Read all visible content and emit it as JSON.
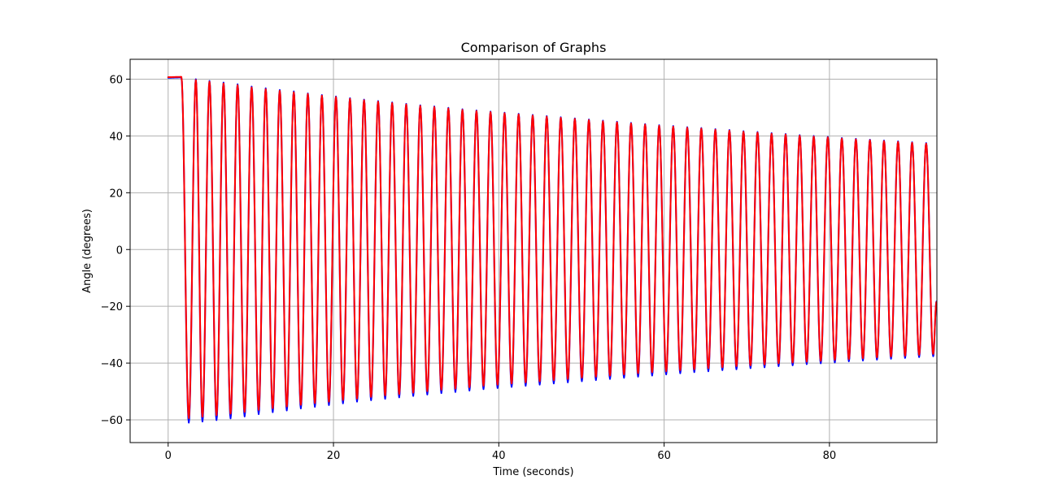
{
  "chart_data": {
    "type": "line",
    "title": "Comparison of Graphs",
    "xlabel": "Time (seconds)",
    "ylabel": "Angle (degrees)",
    "xlim": [
      -4.6,
      93.0
    ],
    "ylim": [
      -68,
      67
    ],
    "xticks": [
      0,
      20,
      40,
      60,
      80
    ],
    "yticks": [
      -60,
      -40,
      -20,
      0,
      20,
      40,
      60
    ],
    "xtick_labels": [
      "0",
      "20",
      "40",
      "60",
      "80"
    ],
    "ytick_labels": [
      "−60",
      "−40",
      "−20",
      "0",
      "20",
      "40",
      "60"
    ],
    "grid": true,
    "legend": "none",
    "series": [
      {
        "color": "#0000ff",
        "points": [
          [
            0.0,
            60.5
          ],
          [
            1.6,
            60.6
          ],
          [
            2.5,
            -61.0
          ],
          [
            3.35,
            60.0
          ],
          [
            4.15,
            -60.6
          ],
          [
            5.0,
            59.4
          ],
          [
            5.85,
            -60.1
          ],
          [
            6.7,
            58.8
          ],
          [
            7.55,
            -59.5
          ],
          [
            8.4,
            58.2
          ],
          [
            9.25,
            -58.8
          ],
          [
            10.1,
            57.4
          ],
          [
            10.95,
            -58.0
          ],
          [
            11.8,
            56.8
          ],
          [
            12.65,
            -57.3
          ],
          [
            13.5,
            56.2
          ],
          [
            14.35,
            -56.7
          ],
          [
            15.2,
            55.7
          ],
          [
            16.05,
            -56.0
          ],
          [
            16.9,
            55.0
          ],
          [
            17.75,
            -55.4
          ],
          [
            18.6,
            54.4
          ],
          [
            19.45,
            -54.8
          ],
          [
            20.3,
            53.9
          ],
          [
            21.15,
            -54.2
          ],
          [
            22.0,
            53.3
          ],
          [
            22.85,
            -53.6
          ],
          [
            23.7,
            52.8
          ],
          [
            24.55,
            -53.1
          ],
          [
            25.4,
            52.3
          ],
          [
            26.25,
            -52.6
          ],
          [
            27.1,
            51.8
          ],
          [
            27.95,
            -52.1
          ],
          [
            28.8,
            51.3
          ],
          [
            29.65,
            -51.6
          ],
          [
            30.5,
            50.8
          ],
          [
            31.35,
            -51.1
          ],
          [
            32.2,
            50.4
          ],
          [
            33.05,
            -50.6
          ],
          [
            33.9,
            49.9
          ],
          [
            34.75,
            -50.2
          ],
          [
            35.6,
            49.4
          ],
          [
            36.45,
            -49.7
          ],
          [
            37.3,
            49.0
          ],
          [
            38.15,
            -49.2
          ],
          [
            39.0,
            48.6
          ],
          [
            39.85,
            -48.8
          ],
          [
            40.7,
            48.2
          ],
          [
            41.55,
            -48.4
          ],
          [
            42.4,
            47.8
          ],
          [
            43.25,
            -48.0
          ],
          [
            44.1,
            47.4
          ],
          [
            44.95,
            -47.6
          ],
          [
            45.8,
            47.0
          ],
          [
            46.65,
            -47.2
          ],
          [
            47.5,
            46.6
          ],
          [
            48.35,
            -46.8
          ],
          [
            49.2,
            46.2
          ],
          [
            50.05,
            -46.4
          ],
          [
            50.9,
            45.8
          ],
          [
            51.75,
            -46.0
          ],
          [
            52.6,
            45.4
          ],
          [
            53.45,
            -45.6
          ],
          [
            54.3,
            45.0
          ],
          [
            55.15,
            -45.2
          ],
          [
            56.0,
            44.6
          ],
          [
            56.85,
            -44.8
          ],
          [
            57.7,
            44.2
          ],
          [
            58.55,
            -44.4
          ],
          [
            59.4,
            43.8
          ],
          [
            60.25,
            -44.0
          ],
          [
            61.1,
            43.5
          ],
          [
            61.95,
            -43.6
          ],
          [
            62.8,
            43.1
          ],
          [
            63.65,
            -43.2
          ],
          [
            64.5,
            42.8
          ],
          [
            65.35,
            -42.9
          ],
          [
            66.2,
            42.4
          ],
          [
            67.05,
            -42.5
          ],
          [
            67.9,
            42.1
          ],
          [
            68.75,
            -42.2
          ],
          [
            69.6,
            41.7
          ],
          [
            70.45,
            -41.8
          ],
          [
            71.3,
            41.4
          ],
          [
            72.15,
            -41.5
          ],
          [
            73.0,
            41.0
          ],
          [
            73.85,
            -41.1
          ],
          [
            74.7,
            40.7
          ],
          [
            75.55,
            -40.8
          ],
          [
            76.4,
            40.3
          ],
          [
            77.25,
            -40.4
          ],
          [
            78.1,
            40.0
          ],
          [
            78.95,
            -40.1
          ],
          [
            79.8,
            39.7
          ],
          [
            80.65,
            -39.8
          ],
          [
            81.5,
            39.3
          ],
          [
            82.35,
            -39.4
          ],
          [
            83.2,
            39.0
          ],
          [
            84.05,
            -39.1
          ],
          [
            84.9,
            38.7
          ],
          [
            85.75,
            -38.8
          ],
          [
            86.6,
            38.4
          ],
          [
            87.45,
            -38.5
          ],
          [
            88.3,
            38.1
          ],
          [
            89.15,
            -38.2
          ],
          [
            90.0,
            37.8
          ],
          [
            90.85,
            -37.9
          ],
          [
            91.7,
            37.5
          ],
          [
            92.55,
            -37.6
          ],
          [
            92.95,
            -18.3
          ]
        ]
      },
      {
        "color": "#ff0000",
        "points": [
          [
            0.0,
            60.7
          ],
          [
            1.6,
            60.8
          ],
          [
            2.5,
            -59.4
          ],
          [
            3.35,
            59.7
          ],
          [
            4.15,
            -58.9
          ],
          [
            5.0,
            59.1
          ],
          [
            5.85,
            -58.4
          ],
          [
            6.7,
            58.5
          ],
          [
            7.55,
            -57.8
          ],
          [
            8.4,
            57.9
          ],
          [
            9.25,
            -57.2
          ],
          [
            10.1,
            57.1
          ],
          [
            10.95,
            -56.5
          ],
          [
            11.8,
            56.5
          ],
          [
            12.65,
            -55.9
          ],
          [
            13.5,
            55.9
          ],
          [
            14.35,
            -55.3
          ],
          [
            15.2,
            55.4
          ],
          [
            16.05,
            -54.7
          ],
          [
            16.9,
            54.8
          ],
          [
            17.75,
            -54.1
          ],
          [
            18.6,
            54.2
          ],
          [
            19.45,
            -53.6
          ],
          [
            20.3,
            53.7
          ],
          [
            21.15,
            -53.0
          ],
          [
            22.0,
            53.1
          ],
          [
            22.85,
            -52.5
          ],
          [
            23.7,
            52.6
          ],
          [
            24.55,
            -51.9
          ],
          [
            25.4,
            52.1
          ],
          [
            26.25,
            -51.4
          ],
          [
            27.1,
            51.6
          ],
          [
            27.95,
            -50.9
          ],
          [
            28.8,
            51.1
          ],
          [
            29.65,
            -50.4
          ],
          [
            30.5,
            50.6
          ],
          [
            31.35,
            -49.9
          ],
          [
            32.2,
            50.2
          ],
          [
            33.05,
            -49.4
          ],
          [
            33.9,
            49.7
          ],
          [
            34.75,
            -49.0
          ],
          [
            35.6,
            49.2
          ],
          [
            36.45,
            -48.5
          ],
          [
            37.3,
            48.8
          ],
          [
            38.15,
            -48.0
          ],
          [
            39.0,
            48.4
          ],
          [
            39.85,
            -47.6
          ],
          [
            40.7,
            48.0
          ],
          [
            41.55,
            -47.2
          ],
          [
            42.4,
            47.6
          ],
          [
            43.25,
            -46.8
          ],
          [
            44.1,
            47.2
          ],
          [
            44.95,
            -46.4
          ],
          [
            45.8,
            46.8
          ],
          [
            46.65,
            -46.0
          ],
          [
            47.5,
            46.4
          ],
          [
            48.35,
            -45.6
          ],
          [
            49.2,
            46.0
          ],
          [
            50.05,
            -45.2
          ],
          [
            50.9,
            45.6
          ],
          [
            51.75,
            -44.8
          ],
          [
            52.6,
            45.2
          ],
          [
            53.45,
            -44.4
          ],
          [
            54.3,
            44.8
          ],
          [
            55.15,
            -44.0
          ],
          [
            56.0,
            44.4
          ],
          [
            56.85,
            -43.6
          ],
          [
            57.7,
            44.0
          ],
          [
            58.55,
            -43.2
          ],
          [
            59.4,
            43.6
          ],
          [
            60.25,
            -42.9
          ],
          [
            61.1,
            43.3
          ],
          [
            61.95,
            -42.5
          ],
          [
            62.8,
            42.9
          ],
          [
            63.65,
            -42.2
          ],
          [
            64.5,
            42.6
          ],
          [
            65.35,
            -41.8
          ],
          [
            66.2,
            42.2
          ],
          [
            67.05,
            -41.5
          ],
          [
            67.9,
            41.9
          ],
          [
            68.75,
            -41.1
          ],
          [
            69.6,
            41.5
          ],
          [
            70.45,
            -40.8
          ],
          [
            71.3,
            41.2
          ],
          [
            72.15,
            -40.5
          ],
          [
            73.0,
            40.8
          ],
          [
            73.85,
            -40.1
          ],
          [
            74.7,
            40.5
          ],
          [
            75.55,
            -39.8
          ],
          [
            76.4,
            40.1
          ],
          [
            77.25,
            -39.5
          ],
          [
            78.1,
            39.8
          ],
          [
            78.95,
            -39.2
          ],
          [
            79.8,
            39.5
          ],
          [
            80.65,
            -38.9
          ],
          [
            81.5,
            39.1
          ],
          [
            82.35,
            -38.6
          ],
          [
            83.2,
            38.8
          ],
          [
            84.05,
            -38.3
          ],
          [
            84.9,
            38.5
          ],
          [
            85.75,
            -38.0
          ],
          [
            86.6,
            38.2
          ],
          [
            87.45,
            -37.7
          ],
          [
            88.3,
            37.9
          ],
          [
            89.15,
            -37.4
          ],
          [
            90.0,
            37.6
          ],
          [
            90.85,
            -37.1
          ],
          [
            91.7,
            37.3
          ],
          [
            92.55,
            -36.8
          ],
          [
            92.95,
            -18.5
          ]
        ]
      }
    ]
  }
}
